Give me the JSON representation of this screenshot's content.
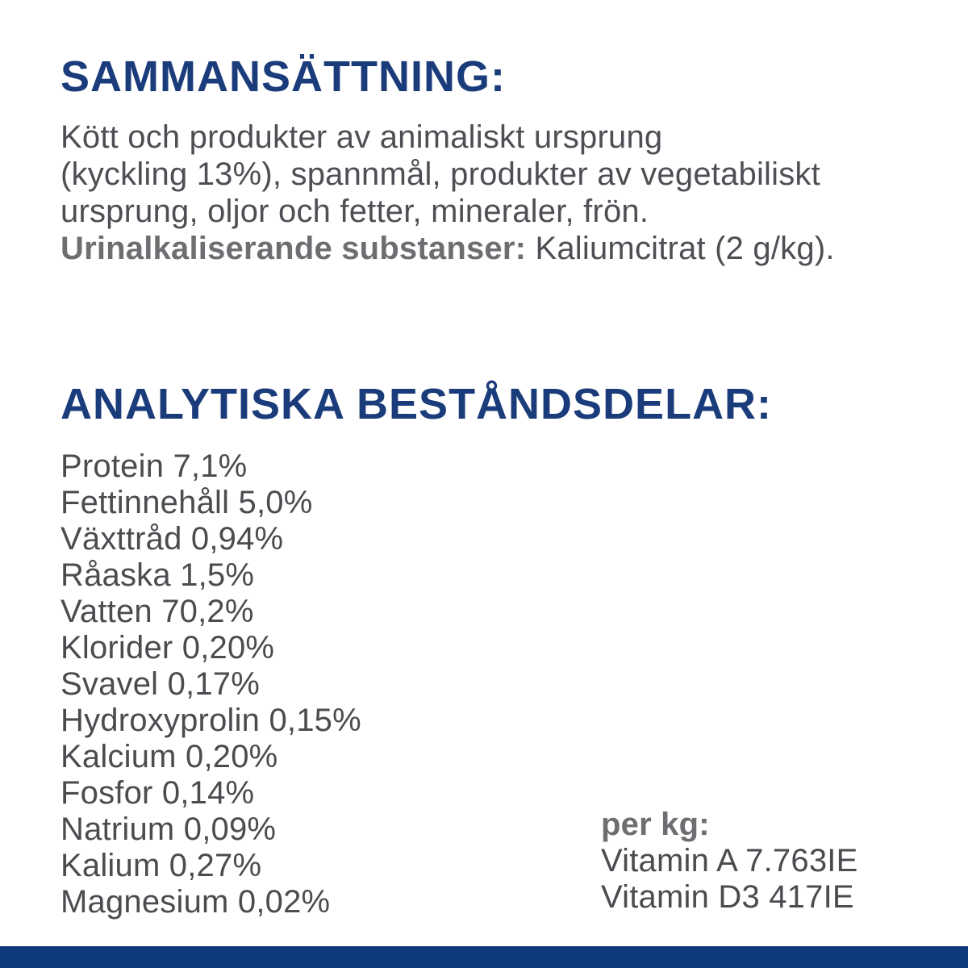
{
  "colors": {
    "heading_navy": "#1b3c7b",
    "body_gray": "#4d4f54",
    "bold_gray": "#6d6e71",
    "footer_bar_navy": "#0e3a7c",
    "background": "#ffffff"
  },
  "composition": {
    "heading": "SAMMANSÄTTNING:",
    "ingredients_lines": [
      "Kött och produkter av animaliskt ursprung",
      "(kyckling 13%), spannmål, produkter av vegetabiliskt",
      "ursprung, oljor och fetter, mineraler, frön."
    ],
    "urine_alkalizing_label": "Urinalkaliserande substanser:",
    "urine_alkalizing_value": "Kaliumcitrat (2 g/kg)."
  },
  "analysis": {
    "heading": "ANALYTISKA BESTÅNDSDELAR:",
    "nutrients": [
      {
        "label": "Protein",
        "value": "7,1%"
      },
      {
        "label": "Fettinnehåll",
        "value": "5,0%"
      },
      {
        "label": "Växttråd",
        "value": "0,94%"
      },
      {
        "label": "Råaska",
        "value": "1,5%"
      },
      {
        "label": "Vatten",
        "value": "70,2%"
      },
      {
        "label": "Klorider",
        "value": "0,20%"
      },
      {
        "label": "Svavel",
        "value": "0,17%"
      },
      {
        "label": "Hydroxyprolin",
        "value": "0,15%"
      },
      {
        "label": "Kalcium",
        "value": "0,20%"
      },
      {
        "label": "Fosfor",
        "value": "0,14%"
      },
      {
        "label": "Natrium",
        "value": "0,09%"
      },
      {
        "label": "Kalium",
        "value": "0,27%"
      },
      {
        "label": "Magnesium",
        "value": "0,02%"
      }
    ],
    "per_kg": {
      "heading": "per kg:",
      "vitamins": [
        {
          "label": "Vitamin A",
          "value": "7.763IE"
        },
        {
          "label": "Vitamin D3",
          "value": "417IE"
        }
      ]
    }
  }
}
